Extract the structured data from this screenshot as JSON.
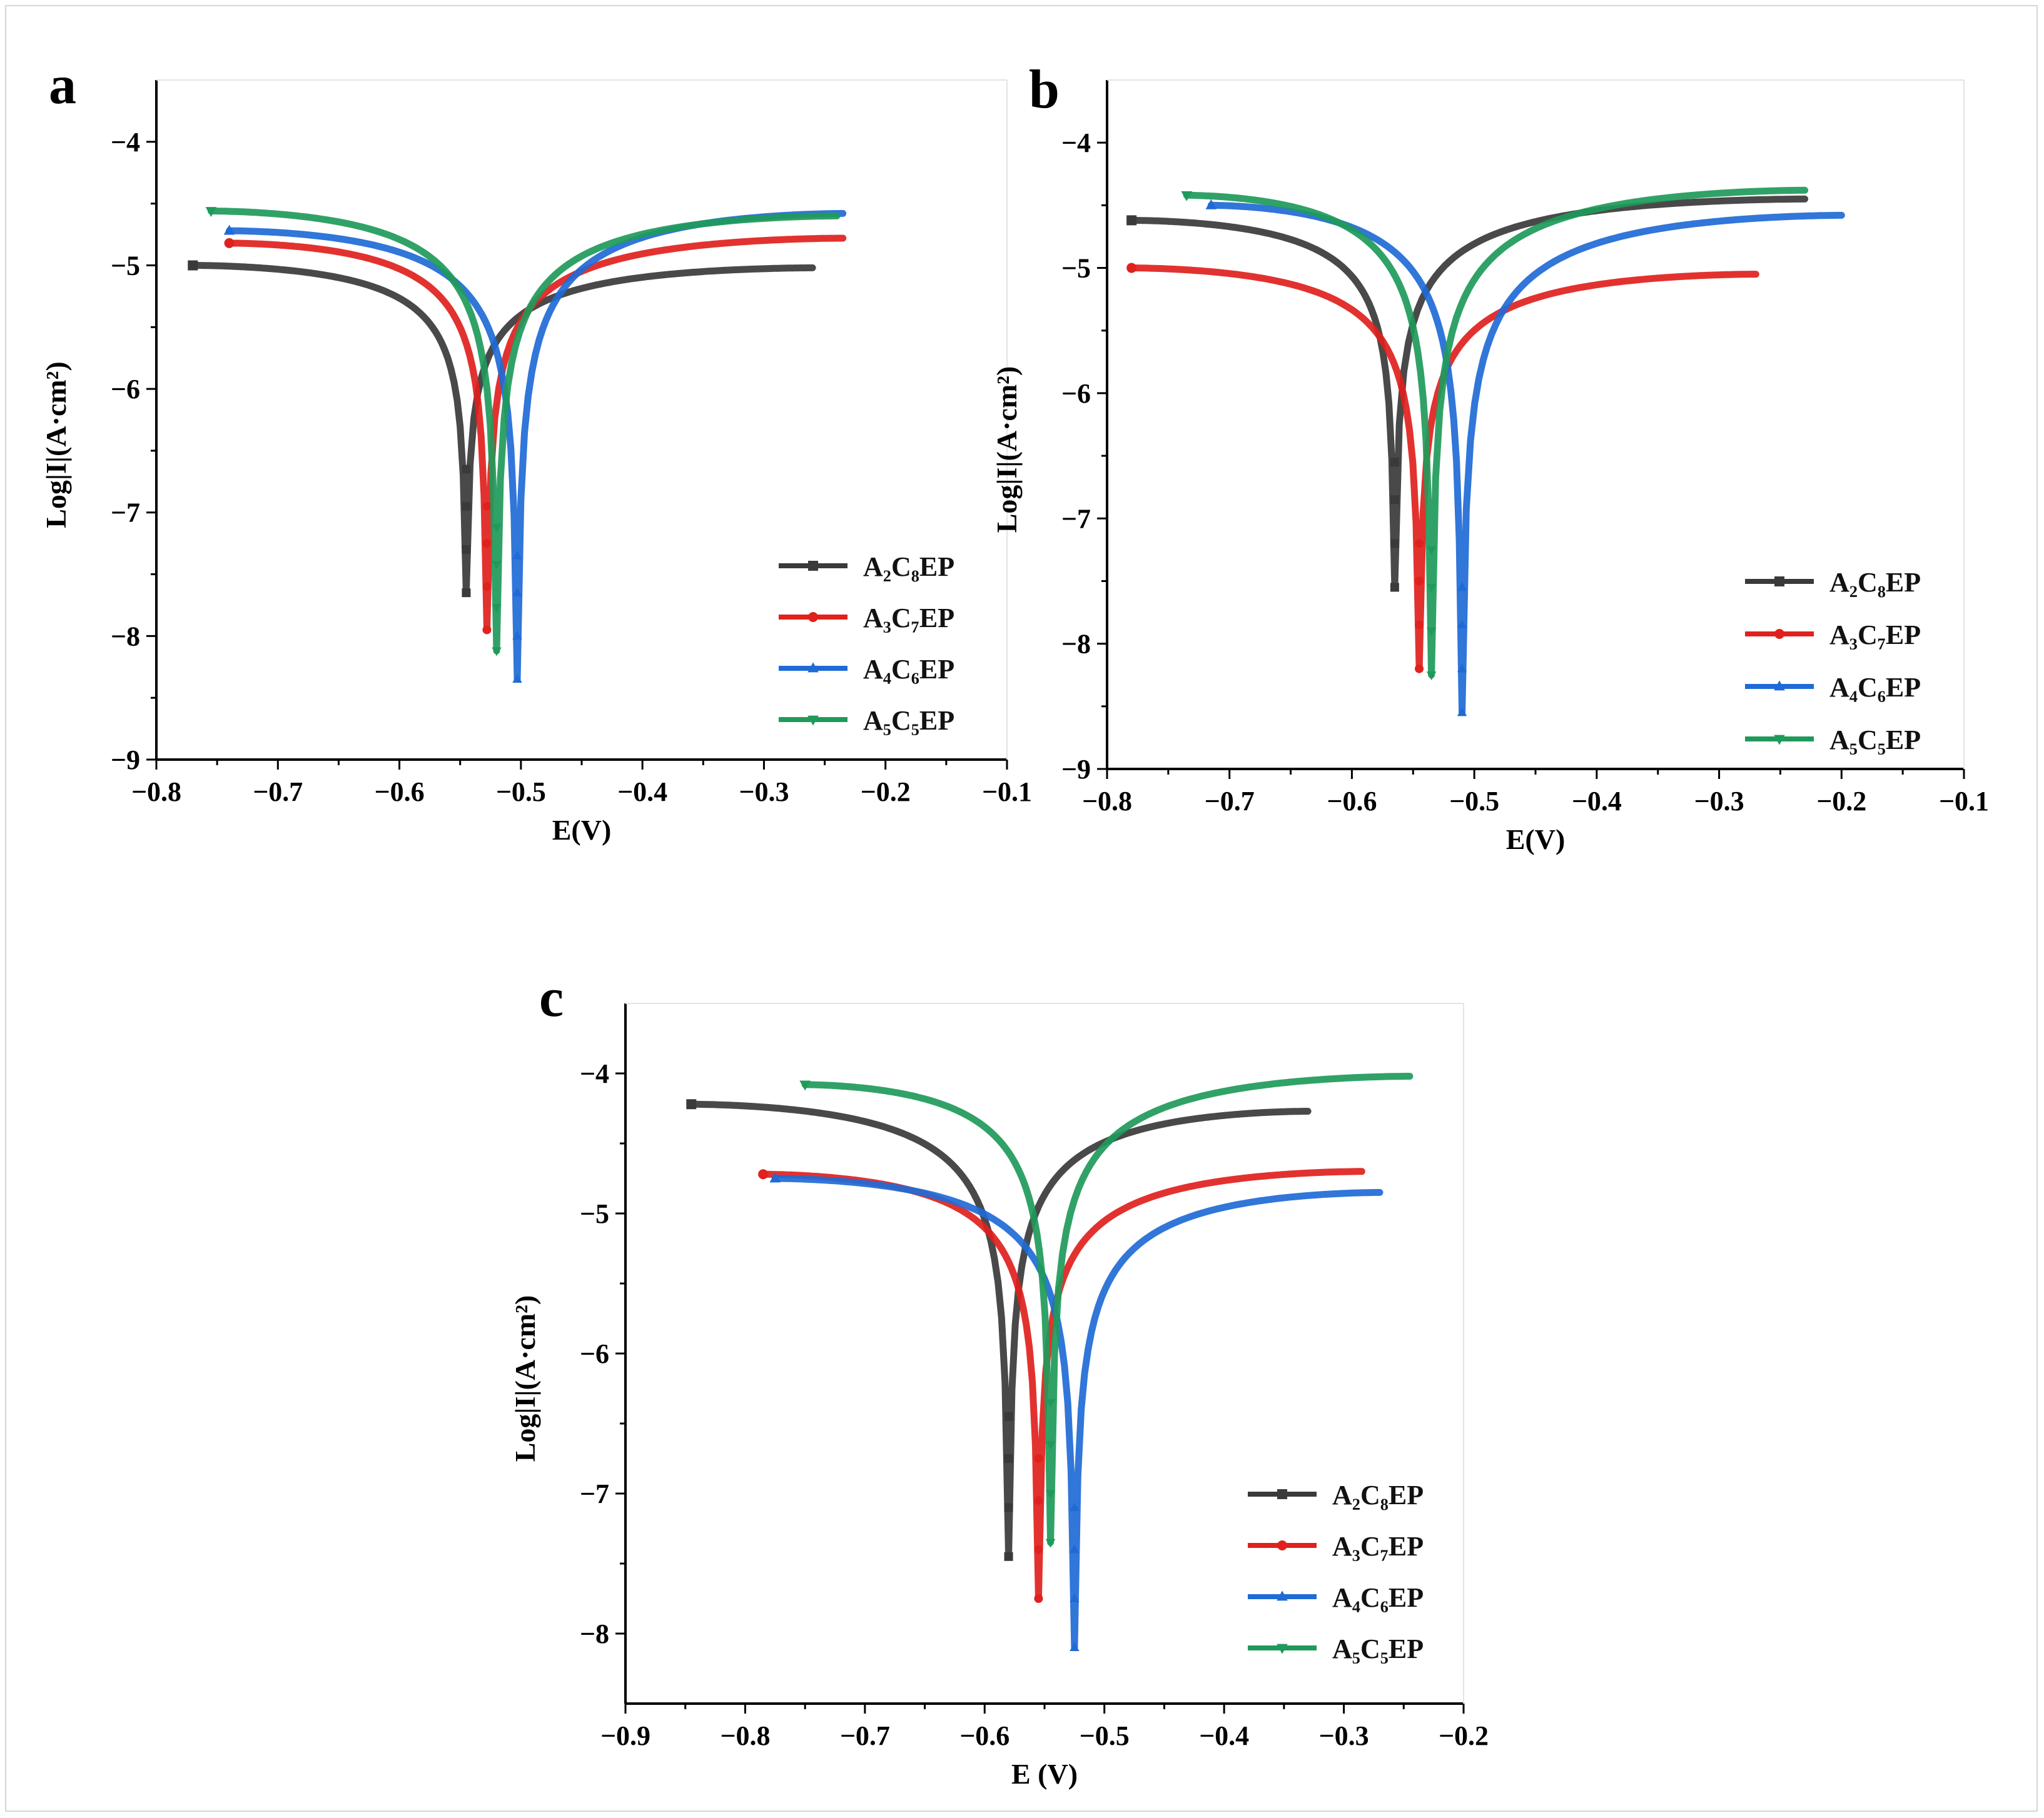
{
  "figure": {
    "panels": [
      "a",
      "b",
      "c"
    ]
  },
  "chart_data": [
    {
      "panel": "a",
      "type": "line",
      "title": "",
      "xlabel": "E(V)",
      "ylabel": "Log|I|(A·cm²)",
      "xlim": [
        -0.8,
        -0.1
      ],
      "ylim": [
        -9,
        -3.5
      ],
      "xticks": [
        -0.8,
        -0.7,
        -0.6,
        -0.5,
        -0.4,
        -0.3,
        -0.2,
        -0.1
      ],
      "xtick_labels": [
        "−0.8",
        "−0.7",
        "−0.6",
        "−0.5",
        "−0.4",
        "−0.3",
        "−0.2",
        "−0.1"
      ],
      "yticks": [
        -9,
        -8,
        -7,
        -6,
        -5,
        -4
      ],
      "ytick_labels": [
        "−9",
        "−8",
        "−7",
        "−6",
        "−5",
        "−4"
      ],
      "legend_position": "bottom-right",
      "series": [
        {
          "name": "A₂C₈EP",
          "color": "#3a3a3a",
          "marker": "square",
          "ecorr": -0.545,
          "icorr_min": -7.65,
          "left": [
            -0.77,
            -5.0
          ],
          "right": [
            -0.26,
            -5.02
          ],
          "branch_ratio": 0.65
        },
        {
          "name": "A₃C₇EP",
          "color": "#e0211d",
          "marker": "circle",
          "ecorr": -0.528,
          "icorr_min": -7.95,
          "left": [
            -0.74,
            -4.82
          ],
          "right": [
            -0.235,
            -4.78
          ],
          "branch_ratio": 0.7
        },
        {
          "name": "A₄C₆EP",
          "color": "#1f6ad6",
          "marker": "triangle-up",
          "ecorr": -0.503,
          "icorr_min": -8.35,
          "left": [
            -0.74,
            -4.72
          ],
          "right": [
            -0.235,
            -4.58
          ],
          "branch_ratio": 0.72
        },
        {
          "name": "A₅C₅EP",
          "color": "#1f9a5a",
          "marker": "triangle-down",
          "ecorr": -0.52,
          "icorr_min": -8.12,
          "left": [
            -0.755,
            -4.56
          ],
          "right": [
            -0.24,
            -4.6
          ],
          "branch_ratio": 0.7
        }
      ]
    },
    {
      "panel": "b",
      "type": "line",
      "title": "",
      "xlabel": "E(V)",
      "ylabel": "Log|I|(A·cm²)",
      "xlim": [
        -0.8,
        -0.1
      ],
      "ylim": [
        -9,
        -3.5
      ],
      "xticks": [
        -0.8,
        -0.7,
        -0.6,
        -0.5,
        -0.4,
        -0.3,
        -0.2,
        -0.1
      ],
      "xtick_labels": [
        "−0.8",
        "−0.7",
        "−0.6",
        "−0.5",
        "−0.4",
        "−0.3",
        "−0.2",
        "−0.1"
      ],
      "yticks": [
        -9,
        -8,
        -7,
        -6,
        -5,
        -4
      ],
      "ytick_labels": [
        "−9",
        "−8",
        "−7",
        "−6",
        "−5",
        "−4"
      ],
      "legend_position": "bottom-right",
      "series": [
        {
          "name": "A₂C₈EP",
          "color": "#3a3a3a",
          "marker": "square",
          "ecorr": -0.565,
          "icorr_min": -7.55,
          "left": [
            -0.78,
            -4.62
          ],
          "right": [
            -0.23,
            -4.45
          ],
          "branch_ratio": 0.62
        },
        {
          "name": "A₃C₇EP",
          "color": "#e0211d",
          "marker": "circle",
          "ecorr": -0.545,
          "icorr_min": -8.2,
          "left": [
            -0.78,
            -5.0
          ],
          "right": [
            -0.27,
            -5.05
          ],
          "branch_ratio": 0.7
        },
        {
          "name": "A₄C₆EP",
          "color": "#1f6ad6",
          "marker": "triangle-up",
          "ecorr": -0.51,
          "icorr_min": -8.55,
          "left": [
            -0.715,
            -4.5
          ],
          "right": [
            -0.2,
            -4.58
          ],
          "branch_ratio": 0.74
        },
        {
          "name": "A₅C₅EP",
          "color": "#1f9a5a",
          "marker": "triangle-down",
          "ecorr": -0.535,
          "icorr_min": -8.25,
          "left": [
            -0.735,
            -4.42
          ],
          "right": [
            -0.23,
            -4.38
          ],
          "branch_ratio": 0.7
        }
      ]
    },
    {
      "panel": "c",
      "type": "line",
      "title": "",
      "xlabel": "E (V)",
      "ylabel": "Log|I|(A·cm²)",
      "xlim": [
        -0.9,
        -0.2
      ],
      "ylim": [
        -8.5,
        -3.5
      ],
      "xticks": [
        -0.9,
        -0.8,
        -0.7,
        -0.6,
        -0.5,
        -0.4,
        -0.3,
        -0.2
      ],
      "xtick_labels": [
        "−0.9",
        "−0.8",
        "−0.7",
        "−0.6",
        "−0.5",
        "−0.4",
        "−0.3",
        "−0.2"
      ],
      "yticks": [
        -8,
        -7,
        -6,
        -5,
        -4
      ],
      "ytick_labels": [
        "−8",
        "−7",
        "−6",
        "−5",
        "−4"
      ],
      "legend_position": "bottom-right",
      "series": [
        {
          "name": "A₂C₈EP",
          "color": "#3a3a3a",
          "marker": "square",
          "ecorr": -0.58,
          "icorr_min": -7.45,
          "left": [
            -0.845,
            -4.22
          ],
          "right": [
            -0.33,
            -4.27
          ],
          "branch_ratio": 0.62
        },
        {
          "name": "A₃C₇EP",
          "color": "#e0211d",
          "marker": "circle",
          "ecorr": -0.555,
          "icorr_min": -7.75,
          "left": [
            -0.785,
            -4.72
          ],
          "right": [
            -0.285,
            -4.7
          ],
          "branch_ratio": 0.68
        },
        {
          "name": "A₄C₆EP",
          "color": "#1f6ad6",
          "marker": "triangle-up",
          "ecorr": -0.525,
          "icorr_min": -8.1,
          "left": [
            -0.775,
            -4.75
          ],
          "right": [
            -0.27,
            -4.85
          ],
          "branch_ratio": 0.72
        },
        {
          "name": "A₅C₅EP",
          "color": "#1f9a5a",
          "marker": "triangle-down",
          "ecorr": -0.545,
          "icorr_min": -7.35,
          "left": [
            -0.75,
            -4.08
          ],
          "right": [
            -0.245,
            -4.02
          ],
          "branch_ratio": 0.64
        }
      ]
    }
  ]
}
